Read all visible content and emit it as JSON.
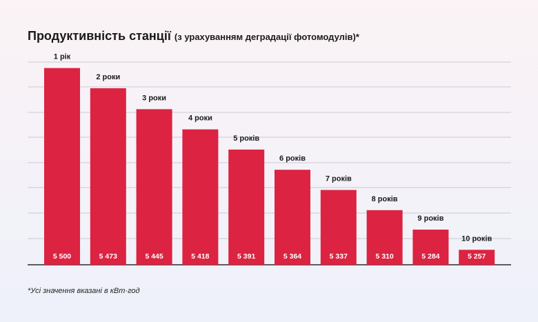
{
  "title": {
    "main": "Продуктивність станції",
    "sub": "(з урахуванням деградації фотомодулів)*"
  },
  "footnote": "*Усі значення вказані в кВт·год",
  "colors": {
    "bar": "#dc2341",
    "grid": "#c9c9d4",
    "bar_text": "#ffffff"
  },
  "chart_data": {
    "type": "bar",
    "categories": [
      "1 рік",
      "2 роки",
      "3 роки",
      "4 роки",
      "5 років",
      "6 років",
      "7 років",
      "8 років",
      "9 років",
      "10 років"
    ],
    "values": [
      5500,
      5473,
      5445,
      5418,
      5391,
      5364,
      5337,
      5310,
      5284,
      5257
    ],
    "value_labels": [
      "5 500",
      "5 473",
      "5 445",
      "5 418",
      "5 391",
      "5 364",
      "5 337",
      "5 310",
      "5 284",
      "5 257"
    ],
    "ylim": [
      5237,
      5508
    ],
    "grid": true,
    "title": "Продуктивність станції (з урахуванням деградації фотомодулів)*"
  }
}
